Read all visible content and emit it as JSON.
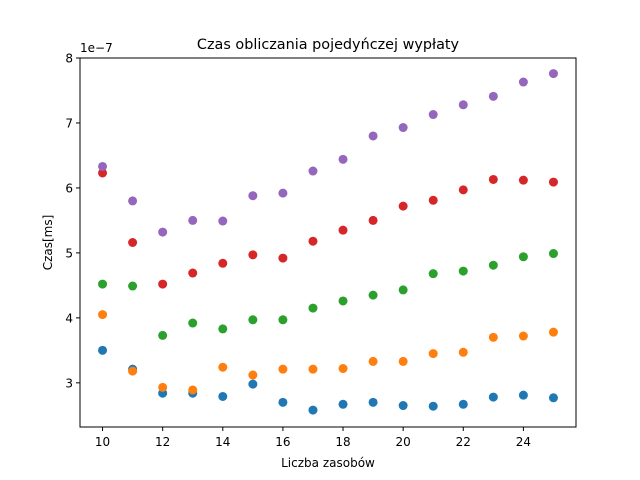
{
  "chart_data": {
    "type": "scatter",
    "title": "Czas obliczania pojedyńczej wypłaty",
    "xlabel": "Liczba zasobów",
    "ylabel": "Czas[ms]",
    "y_offset_label": "1e−7",
    "xlim": [
      9.25,
      25.75
    ],
    "ylim": [
      2.32,
      8.0
    ],
    "x_ticks": [
      10,
      12,
      14,
      16,
      18,
      20,
      22,
      24
    ],
    "y_ticks": [
      3,
      4,
      5,
      6,
      7,
      8
    ],
    "grid": false,
    "legend": false,
    "x": [
      10,
      11,
      12,
      13,
      14,
      15,
      16,
      17,
      18,
      19,
      20,
      21,
      22,
      23,
      24,
      25
    ],
    "series": [
      {
        "color": "#1f77b4",
        "values": [
          3.5,
          3.21,
          2.84,
          2.84,
          2.79,
          2.98,
          2.7,
          2.58,
          2.67,
          2.7,
          2.65,
          2.64,
          2.67,
          2.78,
          2.81,
          2.77
        ]
      },
      {
        "color": "#ff7f0e",
        "values": [
          4.05,
          3.18,
          2.93,
          2.89,
          3.24,
          3.12,
          3.21,
          3.21,
          3.22,
          3.33,
          3.33,
          3.45,
          3.47,
          3.7,
          3.72,
          3.78
        ]
      },
      {
        "color": "#2ca02c",
        "values": [
          4.52,
          4.49,
          3.73,
          3.92,
          3.83,
          3.97,
          3.97,
          4.15,
          4.26,
          4.35,
          4.43,
          4.68,
          4.72,
          4.81,
          4.94,
          4.99
        ]
      },
      {
        "color": "#d62728",
        "values": [
          6.23,
          5.16,
          4.52,
          4.69,
          4.84,
          4.97,
          4.92,
          5.18,
          5.35,
          5.5,
          5.72,
          5.81,
          5.97,
          6.13,
          6.12,
          6.09
        ]
      },
      {
        "color": "#9467bd",
        "values": [
          6.33,
          5.8,
          5.32,
          5.5,
          5.49,
          5.88,
          5.92,
          6.26,
          6.44,
          6.8,
          6.93,
          7.13,
          7.28,
          7.41,
          7.63,
          7.76
        ]
      }
    ]
  }
}
